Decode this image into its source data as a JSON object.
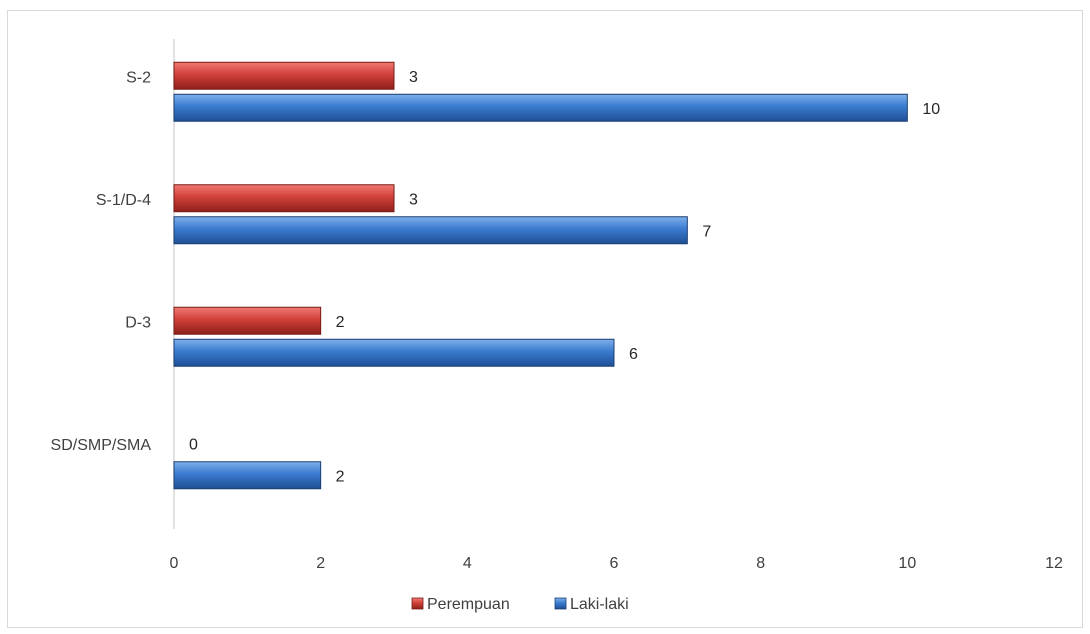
{
  "chart_data": {
    "type": "bar",
    "orientation": "horizontal",
    "categories": [
      "SD/SMP/SMA",
      "D-3",
      "S-1/D-4",
      "S-2"
    ],
    "series": [
      {
        "name": "Perempuan",
        "values": [
          0,
          2,
          3,
          3
        ],
        "color": "#c0392b"
      },
      {
        "name": "Laki-laki",
        "values": [
          2,
          6,
          7,
          10
        ],
        "color": "#2e6fc0"
      }
    ],
    "xlim": [
      0,
      12
    ],
    "x_ticks": [
      0,
      2,
      4,
      6,
      8,
      10,
      12
    ],
    "title": "",
    "xlabel": "",
    "ylabel": "",
    "legend_position": "bottom",
    "grid": false
  }
}
